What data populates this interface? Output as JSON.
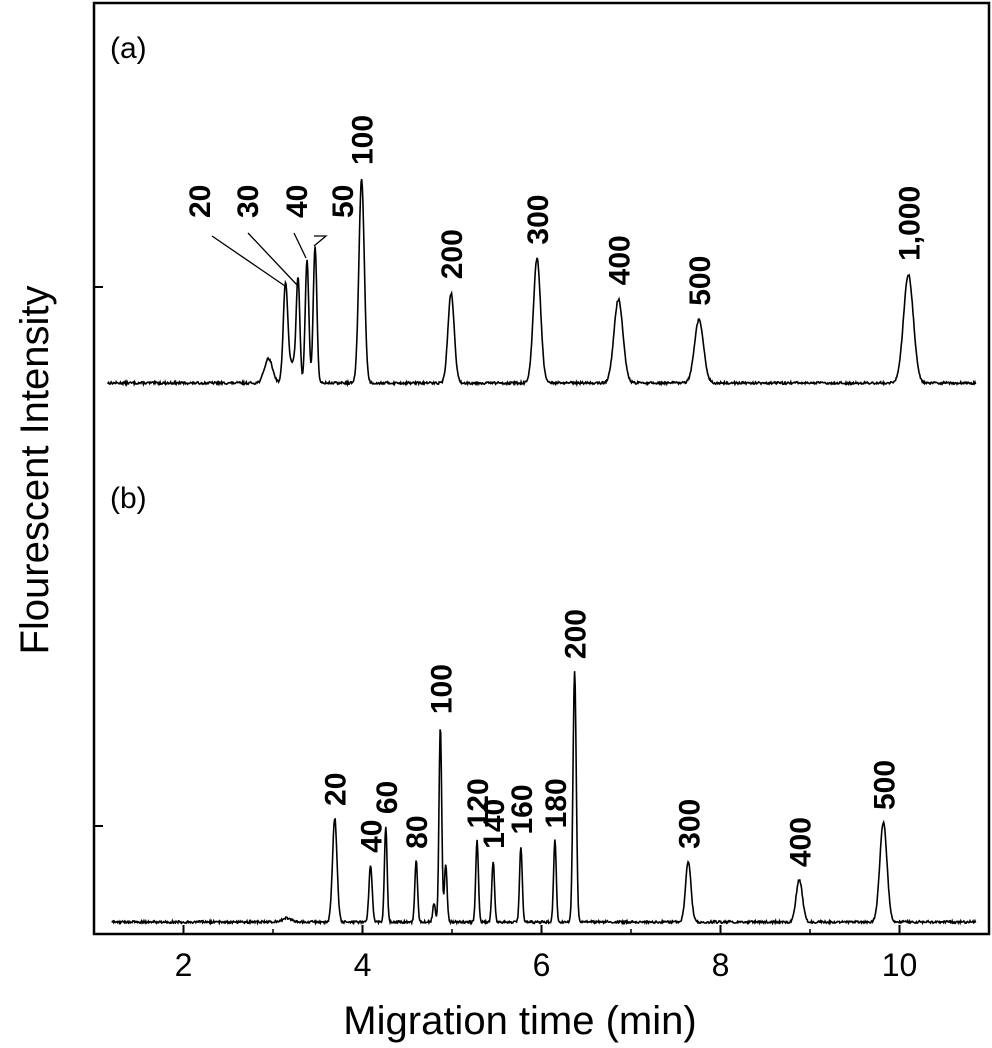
{
  "chart_data": {
    "type": "line",
    "xlabel": "Migration time (min)",
    "ylabel": "Flourescent Intensity",
    "xlim": [
      1.0,
      11.0
    ],
    "x_ticks": [
      "2",
      "4",
      "6",
      "8",
      "10"
    ],
    "x_tick_values": [
      2,
      4,
      6,
      8,
      10
    ],
    "y_tick_labels_shown": false,
    "grid": false,
    "legend": "none",
    "line_color": "#000000",
    "panels": [
      {
        "label": "(a)",
        "baseline_end": 10.85,
        "series": [
          {
            "peaks": [
              {
                "label": "",
                "time": 2.95,
                "height": 0.12,
                "width": 0.045
              },
              {
                "label": "",
                "time": 3.22,
                "height": 0.1,
                "width": 0.035
              },
              {
                "label": "20",
                "time": 3.14,
                "height": 0.49,
                "width": 0.025
              },
              {
                "label": "30",
                "time": 3.28,
                "height": 0.5,
                "width": 0.02
              },
              {
                "label": "40",
                "time": 3.38,
                "height": 0.6,
                "width": 0.02
              },
              {
                "label": "50",
                "time": 3.47,
                "height": 0.67,
                "width": 0.02
              },
              {
                "label": "100",
                "time": 3.99,
                "height": 1.0,
                "width": 0.03
              },
              {
                "label": "200",
                "time": 4.99,
                "height": 0.44,
                "width": 0.035
              },
              {
                "label": "300",
                "time": 5.95,
                "height": 0.61,
                "width": 0.04
              },
              {
                "label": "400",
                "time": 6.86,
                "height": 0.41,
                "width": 0.05
              },
              {
                "label": "500",
                "time": 7.76,
                "height": 0.31,
                "width": 0.05
              },
              {
                "label": "1,000",
                "time": 10.1,
                "height": 0.53,
                "width": 0.055
              }
            ]
          }
        ]
      },
      {
        "label": "(b)",
        "baseline_end": 10.85,
        "series": [
          {
            "peaks": [
              {
                "label": "",
                "time": 3.15,
                "height": 0.02,
                "width": 0.05
              },
              {
                "label": "20",
                "time": 3.69,
                "height": 0.51,
                "width": 0.025
              },
              {
                "label": "40",
                "time": 4.09,
                "height": 0.28,
                "width": 0.018
              },
              {
                "label": "60",
                "time": 4.26,
                "height": 0.47,
                "width": 0.015
              },
              {
                "label": "80",
                "time": 4.6,
                "height": 0.3,
                "width": 0.015
              },
              {
                "label": "",
                "time": 4.8,
                "height": 0.09,
                "width": 0.015
              },
              {
                "label": "100",
                "time": 4.87,
                "height": 0.96,
                "width": 0.015
              },
              {
                "label": "",
                "time": 4.93,
                "height": 0.28,
                "width": 0.015
              },
              {
                "label": "120",
                "time": 5.28,
                "height": 0.4,
                "width": 0.015
              },
              {
                "label": "140",
                "time": 5.46,
                "height": 0.3,
                "width": 0.015
              },
              {
                "label": "160",
                "time": 5.77,
                "height": 0.37,
                "width": 0.015
              },
              {
                "label": "180",
                "time": 6.15,
                "height": 0.4,
                "width": 0.015
              },
              {
                "label": "200",
                "time": 6.37,
                "height": 1.23,
                "width": 0.018
              },
              {
                "label": "300",
                "time": 7.64,
                "height": 0.3,
                "width": 0.03
              },
              {
                "label": "400",
                "time": 8.88,
                "height": 0.21,
                "width": 0.035
              },
              {
                "label": "500",
                "time": 9.82,
                "height": 0.49,
                "width": 0.04
              }
            ]
          }
        ]
      }
    ]
  }
}
